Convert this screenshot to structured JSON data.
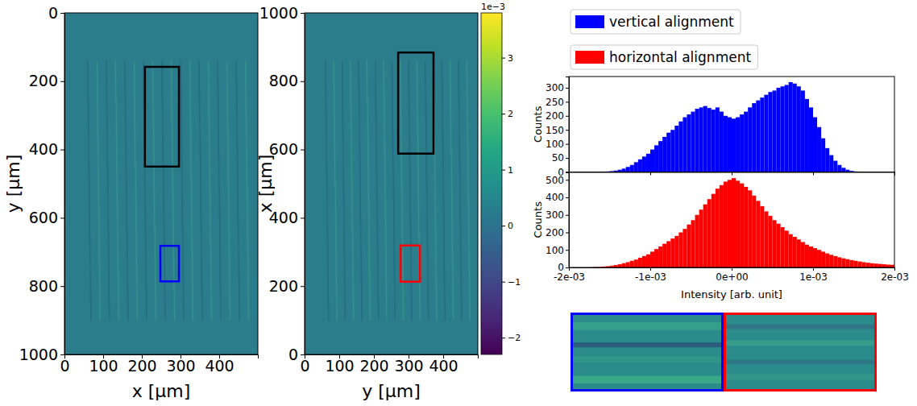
{
  "chart_data": [
    {
      "type": "image",
      "xlabel": "x [μm]",
      "ylabel": "y [μm]",
      "xlim": [
        0,
        500
      ],
      "ylim": [
        1000,
        0
      ],
      "xticks": [
        0,
        100,
        200,
        300,
        400
      ],
      "yticks": [
        0,
        200,
        400,
        600,
        800,
        1000
      ],
      "regions": [
        {
          "color": "#000000",
          "x": [
            208,
            296
          ],
          "y": [
            158,
            450
          ]
        },
        {
          "color": "#0000ff",
          "x": [
            248,
            296
          ],
          "y": [
            682,
            786
          ]
        }
      ]
    },
    {
      "type": "image",
      "xlabel": "y [μm]",
      "ylabel": "x [μm]",
      "xlim": [
        0,
        500
      ],
      "ylim": [
        0,
        1000
      ],
      "xticks": [
        0,
        100,
        200,
        300,
        400
      ],
      "yticks": [
        0,
        200,
        400,
        600,
        800,
        1000
      ],
      "regions": [
        {
          "color": "#000000",
          "x": [
            270,
            372
          ],
          "y": [
            588,
            884
          ]
        },
        {
          "color": "#ff0000",
          "x": [
            277,
            333
          ],
          "y": [
            213,
            319
          ]
        }
      ],
      "colorbar": {
        "color": "viridis",
        "range": [
          -0.0023,
          0.0038
        ],
        "ticks": [
          {
            "value": -0.002,
            "label": "−2"
          },
          {
            "value": -0.001,
            "label": "−1"
          },
          {
            "value": 0,
            "label": "0"
          },
          {
            "value": 0.001,
            "label": "1"
          },
          {
            "value": 0.002,
            "label": "2"
          },
          {
            "value": 0.003,
            "label": "3"
          }
        ],
        "offset_label": "1e−3"
      }
    },
    {
      "type": "histogram",
      "xlabel": "Intensity [arb. unit]",
      "legend": "upper left",
      "xlim": [
        -0.002,
        0.002
      ],
      "xticks": [
        {
          "value": -0.002,
          "label": "-2e-03"
        },
        {
          "value": -0.001,
          "label": "-1e-03"
        },
        {
          "value": 0,
          "label": "0e+00"
        },
        {
          "value": 0.001,
          "label": "1e-03"
        },
        {
          "value": 0.002,
          "label": "2e-03"
        }
      ],
      "bins": [
        -0.002,
        -0.00195,
        -0.0019,
        -0.00185,
        -0.0018,
        -0.00175,
        -0.0017,
        -0.00165,
        -0.0016,
        -0.00155,
        -0.0015,
        -0.00145,
        -0.0014,
        -0.00135,
        -0.0013,
        -0.00125,
        -0.0012,
        -0.00115,
        -0.0011,
        -0.00105,
        -0.001,
        -0.00095,
        -0.0009,
        -0.00085,
        -0.0008,
        -0.00075,
        -0.0007,
        -0.00065,
        -0.0006,
        -0.00055,
        -0.0005,
        -0.00045,
        -0.0004,
        -0.00035,
        -0.0003,
        -0.00025,
        -0.0002,
        -0.00015,
        -0.0001,
        -5e-05,
        0,
        5e-05,
        0.0001,
        0.00015,
        0.0002,
        0.00025,
        0.0003,
        0.00035,
        0.0004,
        0.00045,
        0.0005,
        0.00055,
        0.0006,
        0.00065,
        0.0007,
        0.00075,
        0.0008,
        0.00085,
        0.0009,
        0.00095,
        0.001,
        0.00105,
        0.0011,
        0.00115,
        0.0012,
        0.00125,
        0.0013,
        0.00135,
        0.0014,
        0.00145,
        0.0015,
        0.00155,
        0.0016,
        0.00165,
        0.0017,
        0.00175,
        0.0018,
        0.00185,
        0.0019,
        0.00195,
        0.002
      ],
      "series": [
        {
          "name": "vertical alignment",
          "color": "#0000ff",
          "ylabel": "Counts",
          "ylim": [
            0,
            340
          ],
          "yticks": [
            0,
            50,
            100,
            150,
            200,
            250,
            300
          ],
          "values": [
            0,
            0,
            0,
            0,
            0,
            0,
            0,
            0,
            0,
            2,
            3,
            5,
            8,
            12,
            18,
            25,
            35,
            45,
            55,
            65,
            80,
            95,
            110,
            125,
            140,
            150,
            165,
            180,
            195,
            205,
            215,
            225,
            230,
            235,
            228,
            222,
            230,
            215,
            200,
            195,
            190,
            195,
            205,
            215,
            230,
            245,
            255,
            265,
            275,
            285,
            290,
            300,
            305,
            310,
            320,
            315,
            305,
            290,
            260,
            230,
            195,
            160,
            120,
            85,
            60,
            40,
            25,
            15,
            8,
            4,
            2,
            0,
            0,
            0,
            0,
            0,
            0,
            0,
            0,
            0
          ]
        },
        {
          "name": "horizontal alignment",
          "color": "#ff0000",
          "ylabel": "Counts",
          "ylim": [
            0,
            545
          ],
          "yticks": [
            0,
            100,
            200,
            300,
            400,
            500
          ],
          "values": [
            0,
            0,
            0,
            0,
            0,
            1,
            2,
            3,
            5,
            7,
            10,
            14,
            18,
            24,
            30,
            38,
            45,
            55,
            65,
            75,
            90,
            105,
            120,
            135,
            150,
            165,
            180,
            200,
            220,
            245,
            270,
            300,
            330,
            360,
            390,
            420,
            450,
            470,
            490,
            500,
            510,
            495,
            480,
            460,
            440,
            410,
            380,
            350,
            320,
            295,
            270,
            250,
            230,
            210,
            190,
            175,
            160,
            145,
            130,
            120,
            110,
            100,
            90,
            80,
            72,
            65,
            58,
            52,
            47,
            42,
            38,
            34,
            30,
            27,
            24,
            22,
            20,
            18,
            16,
            15
          ]
        }
      ]
    }
  ]
}
